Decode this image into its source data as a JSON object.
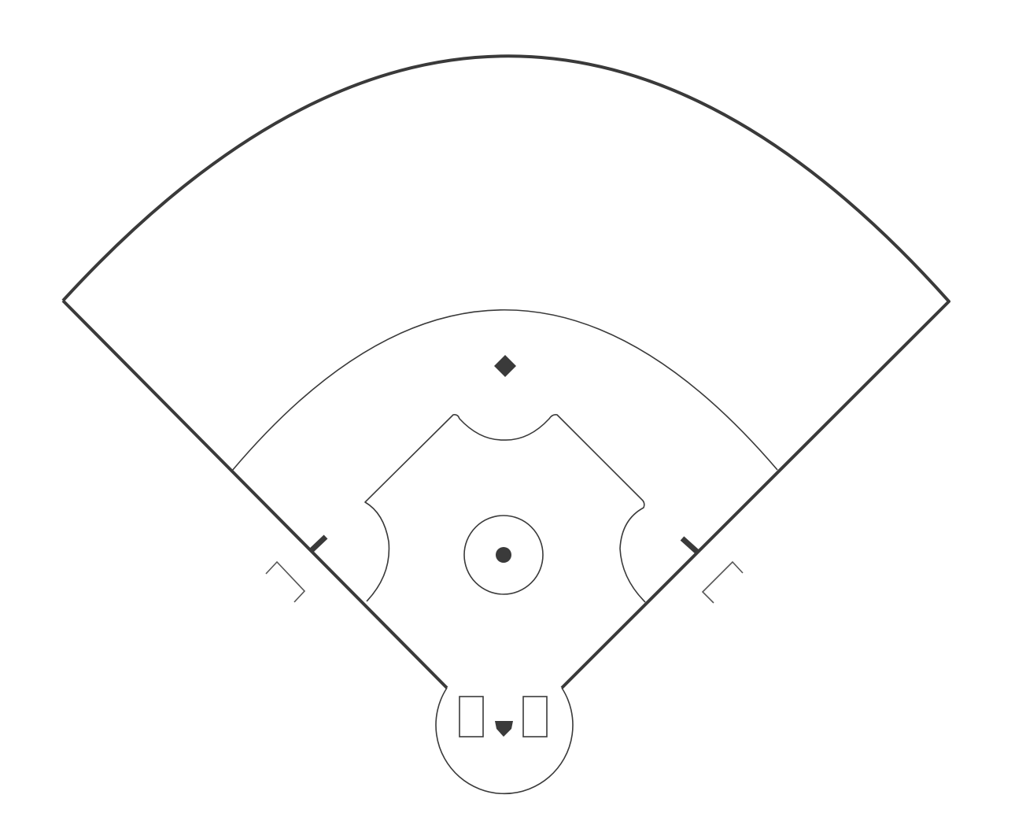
{
  "diagram": {
    "subject": "baseball-field",
    "colors": {
      "background": "#ffffff",
      "line": "#3a3a3a",
      "line_faint": "#555555"
    },
    "icons": {
      "second_base": "diamond-base-icon",
      "pitchers_rubber": "pitchers-rubber-icon",
      "home_plate": "home-plate-icon"
    }
  }
}
